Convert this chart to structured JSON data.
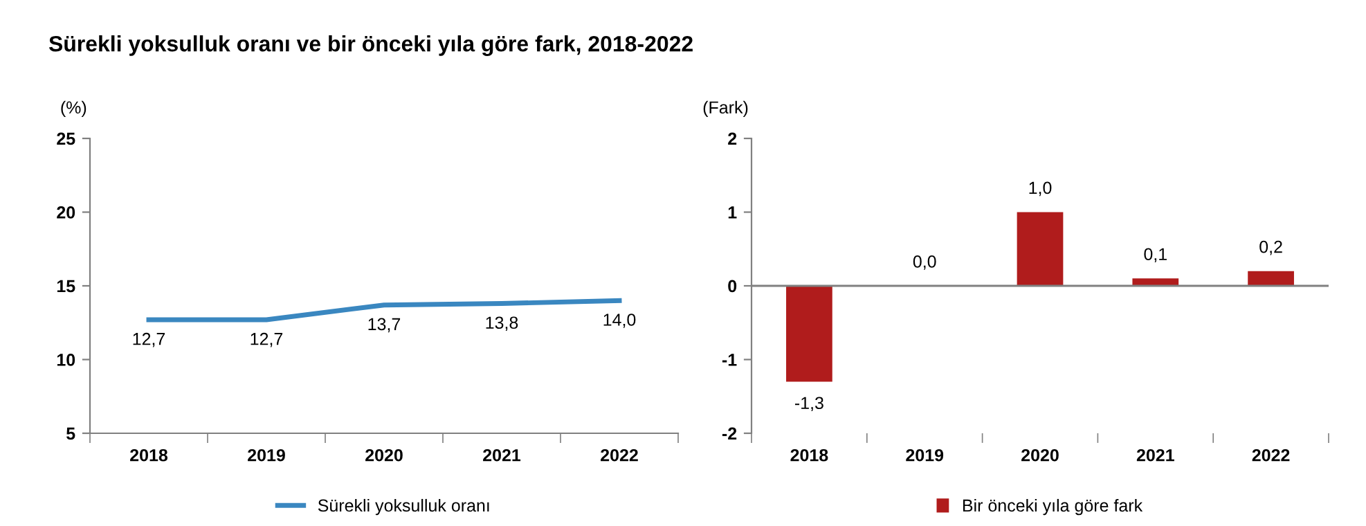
{
  "chart_data": [
    {
      "type": "line",
      "title": "Sürekli yoksulluk oranı ve bir önceki yıla göre fark, 2018-2022",
      "ylabel": "(%)",
      "categories": [
        "2018",
        "2019",
        "2020",
        "2021",
        "2022"
      ],
      "series": [
        {
          "name": "Sürekli yoksulluk oranı",
          "color": "#3a87c0",
          "values": [
            12.7,
            12.7,
            13.7,
            13.8,
            14.0
          ],
          "value_labels": [
            "12,7",
            "12,7",
            "13,7",
            "13,8",
            "14,0"
          ]
        }
      ],
      "ylim": [
        5,
        25
      ],
      "yticks": [
        5,
        10,
        15,
        20,
        25
      ],
      "grid": false,
      "legend": "bottom",
      "marker": "none",
      "line_style": "solid"
    },
    {
      "type": "bar",
      "ylabel": "(Fark)",
      "categories": [
        "2018",
        "2019",
        "2020",
        "2021",
        "2022"
      ],
      "series": [
        {
          "name": "Bir önceki yıla göre fark",
          "color": "#b01c1c",
          "values": [
            -1.3,
            0.0,
            1.0,
            0.1,
            0.2
          ],
          "value_labels": [
            "-1,3",
            "0,0",
            "1,0",
            "0,1",
            "0,2"
          ]
        }
      ],
      "ylim": [
        -2,
        2
      ],
      "yticks": [
        {
          "value": -2,
          "label": "-2"
        },
        {
          "value": -1,
          "label": "-1"
        },
        0,
        1,
        2
      ],
      "grid": false,
      "legend": "bottom",
      "ref_lines": [
        {
          "axis": "y",
          "value": 0,
          "color": "#808080"
        }
      ]
    }
  ]
}
